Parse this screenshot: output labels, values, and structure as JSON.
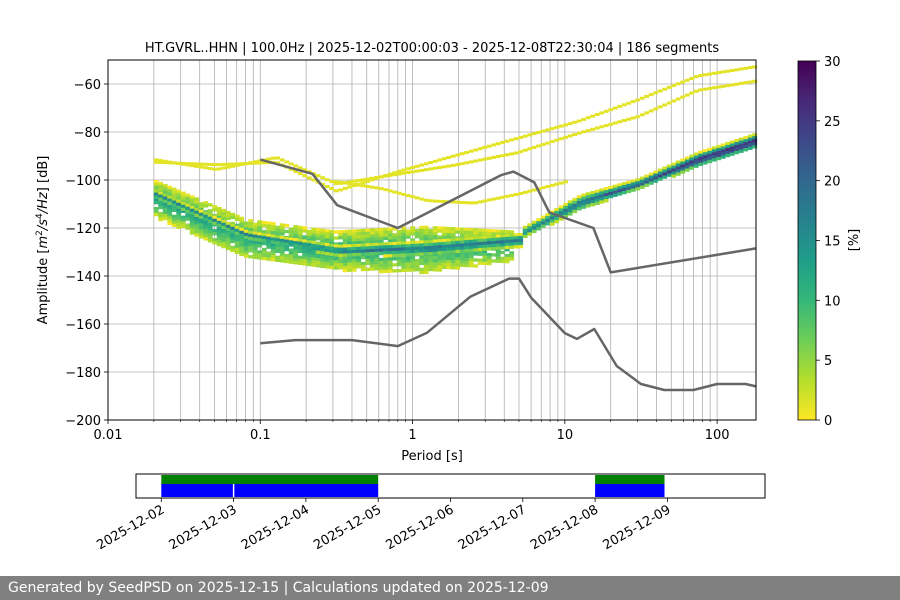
{
  "chart_data": [
    {
      "type": "heatmap",
      "title": "HT.GVRL..HHN | 100.0Hz | 2025-12-02T00:00:03 - 2025-12-08T22:30:04 | 186 segments",
      "xlabel": "Period [s]",
      "ylabel_parts": [
        "Amplitude [",
        "m",
        "2",
        "/",
        "s",
        "4",
        "/",
        "Hz",
        "] [dB]"
      ],
      "xscale": "log",
      "xlim": [
        0.01,
        180
      ],
      "ylim": [
        -200,
        -50
      ],
      "grid": true,
      "xticks": [
        {
          "value": 0.01,
          "label": "0.01"
        },
        {
          "value": 0.1,
          "label": "0.1"
        },
        {
          "value": 1,
          "label": "1"
        },
        {
          "value": 10,
          "label": "10"
        },
        {
          "value": 100,
          "label": "100"
        }
      ],
      "yticks": [
        {
          "value": -60,
          "label": "−60"
        },
        {
          "value": -80,
          "label": "−80"
        },
        {
          "value": -100,
          "label": "−100"
        },
        {
          "value": -120,
          "label": "−120"
        },
        {
          "value": -140,
          "label": "−140"
        },
        {
          "value": -160,
          "label": "−160"
        },
        {
          "value": -180,
          "label": "−180"
        },
        {
          "value": -200,
          "label": "−200"
        }
      ],
      "noise_models": [
        {
          "name": "NHNM",
          "points": [
            [
              0.1,
              -91.5
            ],
            [
              0.22,
              -97.4
            ],
            [
              0.32,
              -110.5
            ],
            [
              0.8,
              -120
            ],
            [
              3.8,
              -98
            ],
            [
              4.6,
              -96.5
            ],
            [
              6.3,
              -101
            ],
            [
              7.9,
              -113.5
            ],
            [
              15.4,
              -120
            ],
            [
              20,
              -138.5
            ],
            [
              180,
              -128.5
            ]
          ]
        },
        {
          "name": "NLNM",
          "points": [
            [
              0.1,
              -168
            ],
            [
              0.17,
              -166.7
            ],
            [
              0.4,
              -166.7
            ],
            [
              0.8,
              -169.2
            ],
            [
              1.24,
              -163.7
            ],
            [
              2.4,
              -148.6
            ],
            [
              4.3,
              -141.1
            ],
            [
              5,
              -141.1
            ],
            [
              6,
              -149
            ],
            [
              10,
              -163.8
            ],
            [
              12,
              -166.2
            ],
            [
              15.6,
              -162.1
            ],
            [
              21.9,
              -177.5
            ],
            [
              31.6,
              -185
            ],
            [
              45,
              -187.5
            ],
            [
              70,
              -187.5
            ],
            [
              100,
              -185
            ],
            [
              154,
              -185
            ],
            [
              180,
              -186
            ]
          ]
        }
      ],
      "psd_bands": [
        {
          "p1": 0.02,
          "p2": 4.5,
          "lower": [
            -115,
            -132,
            -137,
            -138,
            -133
          ],
          "upper": [
            -100,
            -116,
            -121,
            -119,
            -121
          ],
          "label": "noise-band-dense"
        },
        {
          "p1": 0.02,
          "p2": 5,
          "lower": [
            -107,
            -124,
            -131,
            -131,
            -127
          ],
          "upper": [
            -104,
            -121,
            -127,
            -125,
            -122
          ],
          "label": "noise-band-core"
        },
        {
          "p1": 5,
          "p2": 180,
          "lower": [
            -124,
            -112,
            -103,
            -94,
            -86
          ],
          "upper": [
            -120,
            -106,
            -99,
            -88,
            -80
          ],
          "label": "microseism-ridge"
        }
      ],
      "psd_traces": [
        {
          "p1": 0.02,
          "p2": 180,
          "values": [
            -92,
            -93,
            -92,
            -104,
            -96,
            -89,
            -82,
            -75,
            -66,
            -56,
            -52
          ],
          "label": "upper-trace-1"
        },
        {
          "p1": 0.02,
          "p2": 180,
          "values": [
            -91,
            -95,
            -90,
            -101,
            -97,
            -93,
            -88,
            -80,
            -73,
            -62,
            -58
          ],
          "label": "upper-trace-2"
        },
        {
          "p1": 0.3,
          "p2": 10,
          "values": [
            -100,
            -103,
            -108,
            -109,
            -105,
            -100
          ],
          "label": "upper-trace-3"
        }
      ],
      "colorbar": {
        "label": "[%]",
        "range": [
          0,
          30
        ],
        "ticks": [
          "0",
          "5",
          "10",
          "15",
          "20",
          "25",
          "30"
        ],
        "colors": [
          "#fde725",
          "#b5de2b",
          "#6ece58",
          "#35b779",
          "#1f9e89",
          "#26828e",
          "#31688e",
          "#3e4989",
          "#482878",
          "#440154"
        ]
      }
    },
    {
      "type": "timeline",
      "date_labels": [
        "2025-12-02",
        "2025-12-03",
        "2025-12-04",
        "2025-12-05",
        "2025-12-06",
        "2025-12-07",
        "2025-12-08",
        "2025-12-09"
      ],
      "xlim_days": [
        -0.35,
        8.35
      ],
      "data_segments": [
        [
          0,
          3
        ]
      ],
      "data_segment_gaps_at": [
        1
      ],
      "data_color": "#008000",
      "psd_segments": [
        [
          0,
          0.99
        ],
        [
          1.01,
          3
        ],
        [
          6,
          6.96
        ]
      ],
      "psd_color": "#0000ff",
      "data_segments_extra": [
        [
          6,
          6.96
        ]
      ]
    }
  ],
  "footer": {
    "text": "Generated by SeedPSD on 2025-12-15 | Calculations updated on 2025-12-09"
  }
}
